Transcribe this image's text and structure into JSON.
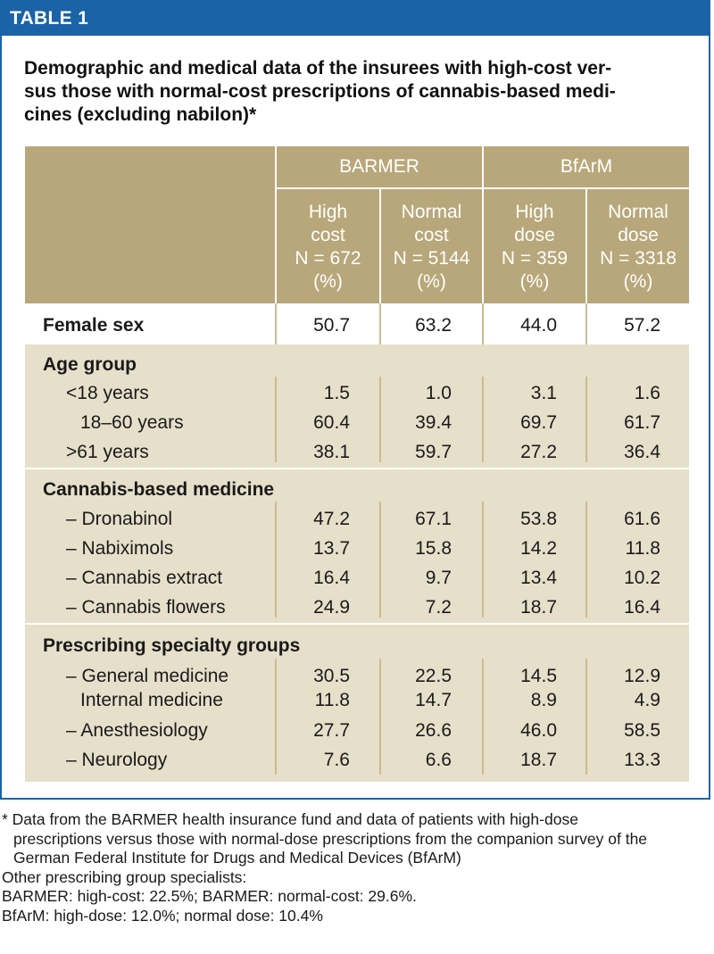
{
  "header": {
    "label": "TABLE 1"
  },
  "caption": "Demographic and medical data of the insurees with high-cost ver-\nsus those with normal-cost prescriptions of cannabis-based medi-\ncines (excluding nabilon)*",
  "table": {
    "groups": [
      "BARMER",
      "BfArM"
    ],
    "subheaders": [
      {
        "l1": "High",
        "l2": "cost",
        "l3": "N = 672",
        "l4": "(%)"
      },
      {
        "l1": "Normal",
        "l2": "cost",
        "l3": "N = 5144",
        "l4": "(%)"
      },
      {
        "l1": "High",
        "l2": "dose",
        "l3": "N = 359",
        "l4": "(%)"
      },
      {
        "l1": "Normal",
        "l2": "dose",
        "l3": "N = 3318",
        "l4": "(%)"
      }
    ],
    "female": {
      "label": "Female sex",
      "values": [
        "50.7",
        "63.2",
        "44.0",
        "57.2"
      ]
    },
    "age": {
      "title": "Age group",
      "rows": [
        {
          "label": "<18 years",
          "values": [
            "1.5",
            "1.0",
            "3.1",
            "1.6"
          ]
        },
        {
          "label": "18–60 years",
          "values": [
            "60.4",
            "39.4",
            "69.7",
            "61.7"
          ]
        },
        {
          "label": ">61 years",
          "values": [
            "38.1",
            "59.7",
            "27.2",
            "36.4"
          ]
        }
      ]
    },
    "cannabis": {
      "title": "Cannabis-based medicine",
      "rows": [
        {
          "label": "– Dronabinol",
          "values": [
            "47.2",
            "67.1",
            "53.8",
            "61.6"
          ]
        },
        {
          "label": "– Nabiximols",
          "values": [
            "13.7",
            "15.8",
            "14.2",
            "11.8"
          ]
        },
        {
          "label": "– Cannabis extract",
          "values": [
            "16.4",
            "9.7",
            "13.4",
            "10.2"
          ]
        },
        {
          "label": "– Cannabis flowers",
          "values": [
            "24.9",
            "7.2",
            "18.7",
            "16.4"
          ]
        }
      ]
    },
    "specialty": {
      "title": "Prescribing specialty groups",
      "rows": [
        {
          "label": "– General medicine",
          "values": [
            "30.5",
            "22.5",
            "14.5",
            "12.9"
          ]
        },
        {
          "label": "Internal medicine",
          "values": [
            "11.8",
            "14.7",
            "8.9",
            "4.9"
          ]
        },
        {
          "label": "– Anesthesiology",
          "values": [
            "27.7",
            "26.6",
            "46.0",
            "58.5"
          ]
        },
        {
          "label": "– Neurology",
          "values": [
            "7.6",
            "6.6",
            "18.7",
            "13.3"
          ]
        }
      ]
    }
  },
  "footnotes": {
    "f1": "* Data from the BARMER health insurance fund and data of patients with high-dose",
    "f2": "prescriptions versus those with normal-dose prescriptions from the companion survey of the",
    "f3": "German Federal Institute for Drugs and Medical Devices (BfArM)",
    "f4": "Other prescribing group specialists:",
    "f5": "BARMER: high-cost: 22.5%; BARMER: normal-cost: 29.6%.",
    "f6": "BfArM: high-dose: 12.0%; normal dose: 10.4%"
  },
  "colors": {
    "header_blue": "#1b63a7",
    "table_tan": "#b8a77a",
    "row_light": "#e6dfca"
  }
}
